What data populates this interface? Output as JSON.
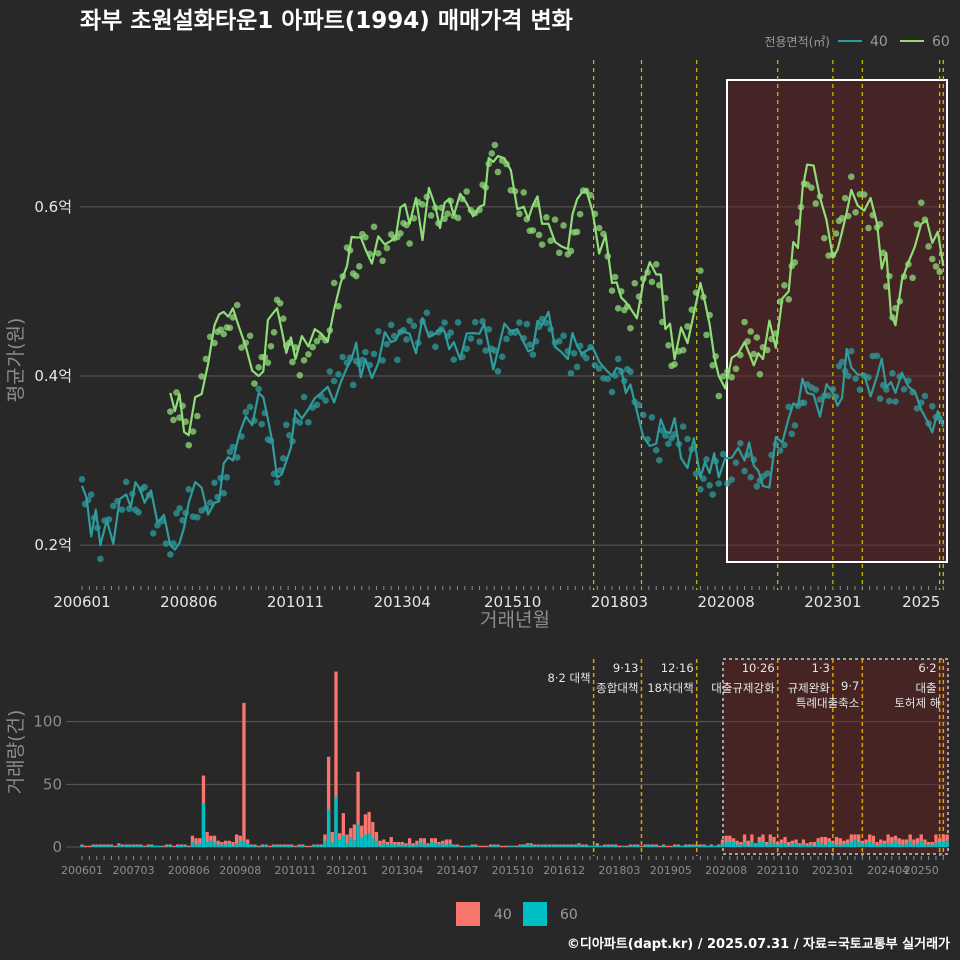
{
  "chart_data": [
    {
      "type": "line",
      "title": "좌부 초원설화타운1 아파트(1994) 매매가격 변화",
      "xlabel": "거래년월",
      "ylabel": "평균가(원)",
      "x_ticks": [
        "200601",
        "200806",
        "201011",
        "201304",
        "201510",
        "201803",
        "202008",
        "202301",
        "2025"
      ],
      "y_ticks": [
        "0.2억",
        "0.4억",
        "0.6억"
      ],
      "ylim": [
        0.18,
        0.75
      ],
      "legend": {
        "title": "전용면적(㎡)",
        "position": "top-right"
      },
      "series": [
        {
          "name": "40",
          "color": "#2e9c9c",
          "x": [
            "2006-01",
            "2006-06",
            "2007-01",
            "2007-06",
            "2008-01",
            "2008-06",
            "2009-01",
            "2009-06",
            "2010-01",
            "2010-06",
            "2010-11",
            "2011-06",
            "2012-01",
            "2012-06",
            "2013-01",
            "2013-06",
            "2014-01",
            "2014-06",
            "2015-01",
            "2015-06",
            "2016-01",
            "2016-06",
            "2017-01",
            "2017-06",
            "2018-01",
            "2018-06",
            "2019-01",
            "2019-06",
            "2020-01",
            "2020-06",
            "2021-01",
            "2021-06",
            "2022-01",
            "2022-06",
            "2023-01",
            "2023-06",
            "2024-01",
            "2024-06",
            "2025-01",
            "2025-07"
          ],
          "values": [
            0.27,
            0.2,
            0.26,
            0.25,
            0.2,
            0.25,
            0.25,
            0.3,
            0.38,
            0.28,
            0.36,
            0.38,
            0.41,
            0.42,
            0.44,
            0.45,
            0.45,
            0.44,
            0.45,
            0.43,
            0.44,
            0.46,
            0.42,
            0.43,
            0.4,
            0.39,
            0.32,
            0.35,
            0.28,
            0.28,
            0.3,
            0.27,
            0.35,
            0.38,
            0.38,
            0.41,
            0.4,
            0.38,
            0.36,
            0.34
          ]
        },
        {
          "name": "60",
          "color": "#8fdc78",
          "x": [
            "2008-01",
            "2008-06",
            "2009-01",
            "2009-06",
            "2010-01",
            "2010-06",
            "2010-11",
            "2011-06",
            "2012-01",
            "2012-06",
            "2013-01",
            "2013-06",
            "2014-01",
            "2014-06",
            "2015-01",
            "2015-06",
            "2016-01",
            "2016-06",
            "2017-01",
            "2017-06",
            "2018-01",
            "2018-06",
            "2019-01",
            "2019-06",
            "2020-01",
            "2020-06",
            "2021-01",
            "2021-06",
            "2022-01",
            "2022-06",
            "2023-01",
            "2023-06",
            "2024-01",
            "2024-06",
            "2025-01",
            "2025-07"
          ],
          "values": [
            0.38,
            0.33,
            0.46,
            0.48,
            0.4,
            0.48,
            0.42,
            0.45,
            0.53,
            0.55,
            0.56,
            0.58,
            0.6,
            0.59,
            0.6,
            0.66,
            0.6,
            0.58,
            0.55,
            0.62,
            0.51,
            0.48,
            0.52,
            0.42,
            0.51,
            0.4,
            0.44,
            0.42,
            0.5,
            0.65,
            0.54,
            0.62,
            0.58,
            0.46,
            0.58,
            0.53
          ]
        }
      ]
    },
    {
      "type": "bar",
      "ylabel": "거래량(건)",
      "x_ticks": [
        "200601",
        "200703",
        "200806",
        "200908",
        "201011",
        "201201",
        "201304",
        "201407",
        "201510",
        "201612",
        "201803",
        "201905",
        "202008",
        "202110",
        "202301",
        "202404",
        "20250"
      ],
      "y_ticks": [
        "0",
        "50",
        "100"
      ],
      "ylim": [
        0,
        150
      ],
      "legend": {
        "position": "bottom"
      },
      "series": [
        {
          "name": "40",
          "color": "#f8766d"
        },
        {
          "name": "60",
          "color": "#00bfc4"
        }
      ],
      "spikes": [
        {
          "x": "2008-10",
          "total": 57,
          "teal": 35
        },
        {
          "x": "2009-09",
          "total": 115,
          "teal": 5
        },
        {
          "x": "2011-08",
          "total": 72,
          "teal": 30
        },
        {
          "x": "2011-10",
          "total": 140,
          "teal": 40
        },
        {
          "x": "2012-04",
          "total": 60,
          "teal": 18
        }
      ],
      "annotations": [
        {
          "date": "2017-08",
          "label": "8·2 대책"
        },
        {
          "date": "2018-09",
          "label": "9·13",
          "sub": "종합대책"
        },
        {
          "date": "2019-12",
          "label": "12·16",
          "sub": "18차대책"
        },
        {
          "date": "2021-10",
          "label": "10·26",
          "sub": "대출규제강화"
        },
        {
          "date": "2023-01",
          "label": "1·3",
          "sub": "규제완화"
        },
        {
          "date": "2023-09",
          "label": "9·7",
          "sub": "특례대출축소"
        },
        {
          "date": "2025-06",
          "label": "6·2",
          "sub": "대출"
        },
        {
          "date": "2025-07",
          "label": "",
          "sub": "토허제 해"
        }
      ]
    }
  ],
  "caption": "©디아파트(dapt.kr) / 2025.07.31 / 자료=국토교통부 실거래가"
}
